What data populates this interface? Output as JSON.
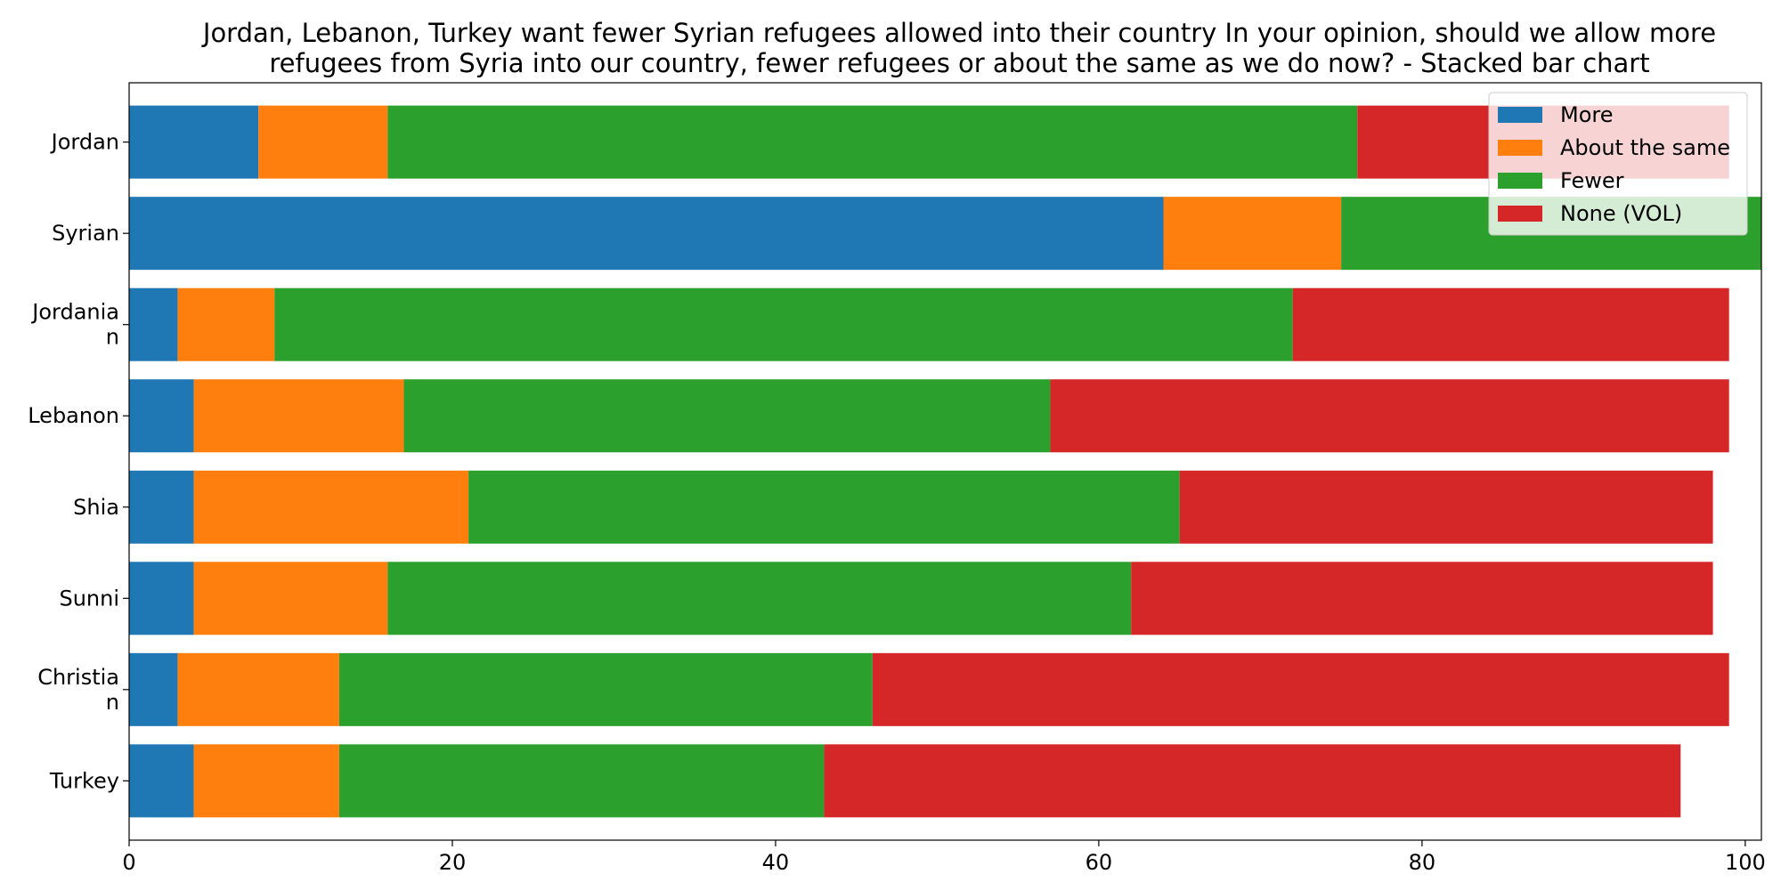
{
  "chart_data": {
    "type": "bar",
    "orientation": "horizontal",
    "stacked": true,
    "title_lines": [
      "Jordan, Lebanon, Turkey want fewer Syrian refugees allowed into their country In your opinion, should we allow more",
      "refugees from Syria into our country, fewer refugees or about the same as we do now?  - Stacked bar chart"
    ],
    "categories": [
      [
        "Jordan"
      ],
      [
        "Syrian"
      ],
      [
        "Jordania",
        "n"
      ],
      [
        "Lebanon"
      ],
      [
        "Shia"
      ],
      [
        "Sunni"
      ],
      [
        "Christia",
        "n"
      ],
      [
        "Turkey"
      ]
    ],
    "series": [
      {
        "name": "More",
        "color": "#1f77b4",
        "values": [
          8,
          64,
          3,
          4,
          4,
          4,
          3,
          4
        ]
      },
      {
        "name": "About the same",
        "color": "#ff7f0e",
        "values": [
          8,
          11,
          6,
          13,
          17,
          12,
          10,
          9
        ]
      },
      {
        "name": "Fewer",
        "color": "#2ca02c",
        "values": [
          60,
          26,
          63,
          40,
          44,
          46,
          33,
          30
        ]
      },
      {
        "name": "None (VOL)",
        "color": "#d62728",
        "values": [
          23,
          0,
          27,
          42,
          33,
          36,
          53,
          53
        ]
      }
    ],
    "xlim": [
      0,
      101
    ],
    "xticks": [
      0,
      20,
      40,
      60,
      80,
      100
    ],
    "legend_position": "top-right",
    "grid": false
  }
}
